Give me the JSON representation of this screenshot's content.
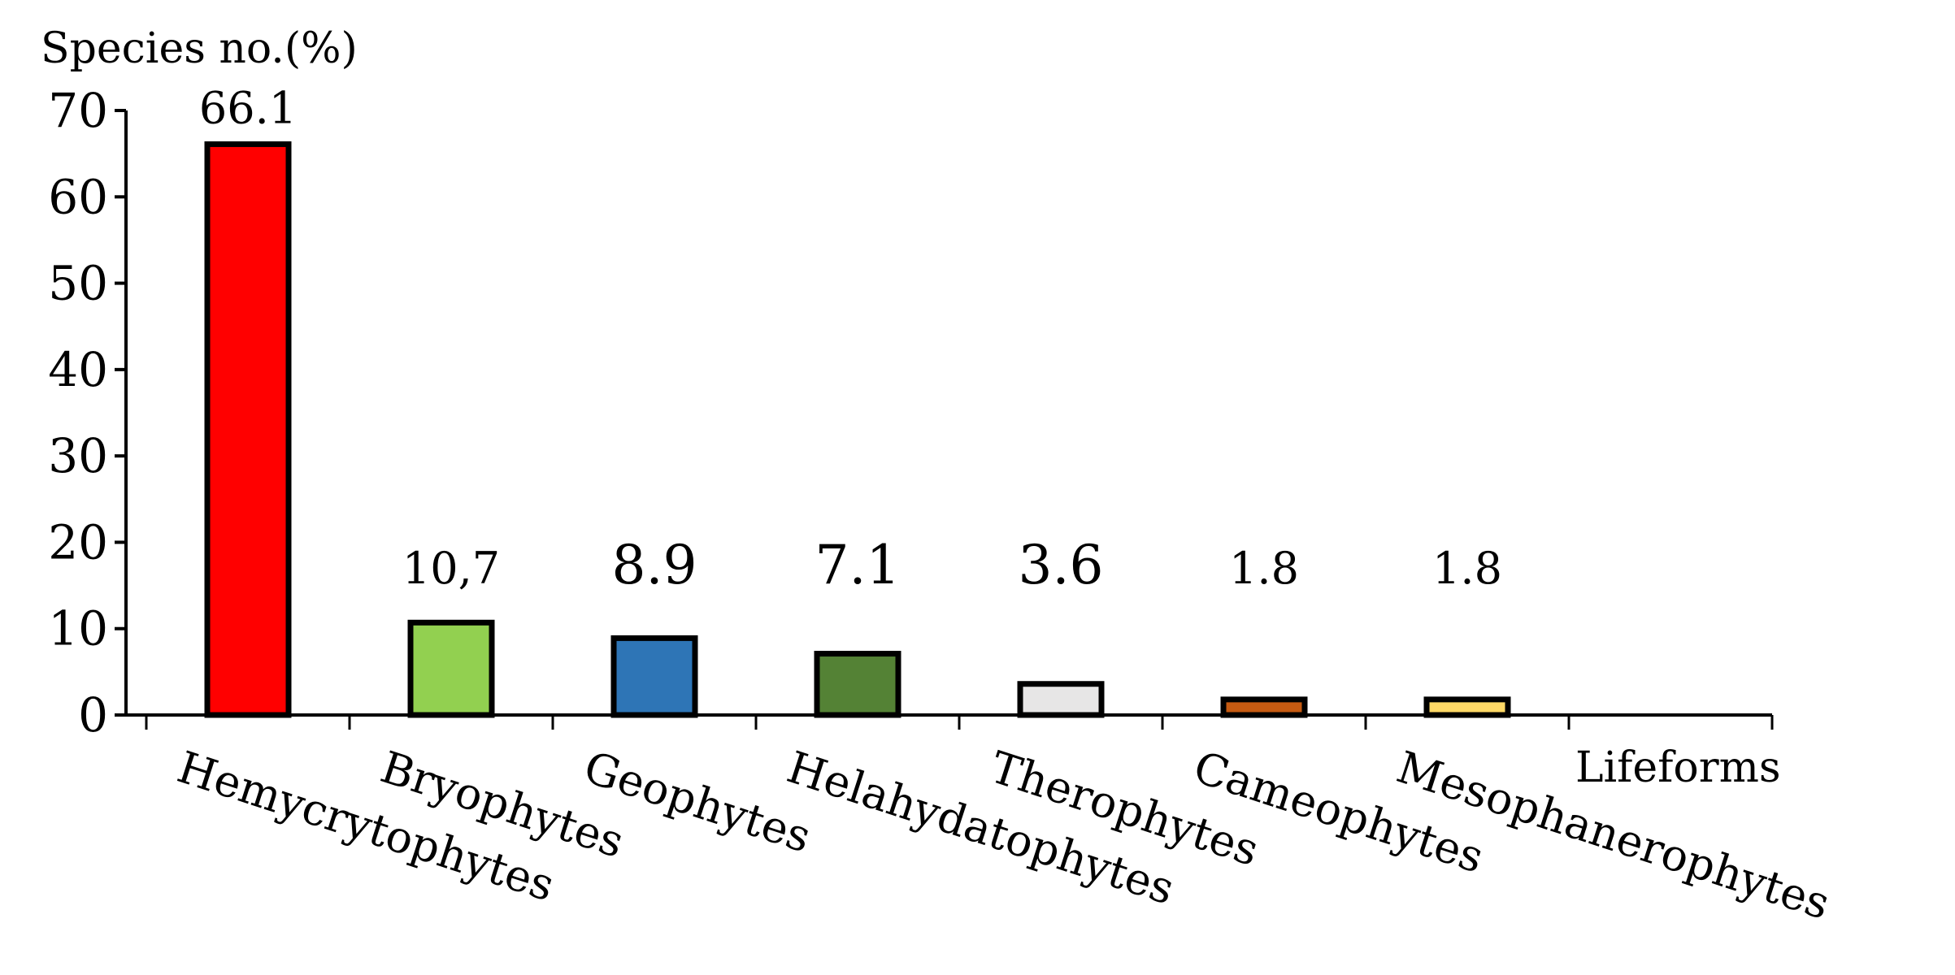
{
  "chart_data": {
    "type": "bar",
    "categories": [
      "Hemycrytophytes",
      "Bryophytes",
      "Geophytes",
      "Helahydatophytes",
      "Therophytes",
      "Cameophytes",
      "Mesophanerophytes"
    ],
    "values": [
      66.1,
      10.7,
      8.9,
      7.1,
      3.6,
      1.8,
      1.8
    ],
    "data_labels": [
      "66.1",
      "10,7",
      "8.9",
      "7.1",
      "3.6",
      "1.8",
      "1.8"
    ],
    "colors": [
      "#ff0000",
      "#92d050",
      "#2e75b6",
      "#548235",
      "#e7e6e6",
      "#c55a11",
      "#ffd966"
    ],
    "ylabel": "Species no.(%)",
    "xlabel": "Lifeforms",
    "ylim": [
      0,
      70
    ],
    "yticks": [
      0,
      10,
      20,
      30,
      40,
      50,
      60,
      70
    ],
    "grid": false,
    "legend": "none"
  }
}
